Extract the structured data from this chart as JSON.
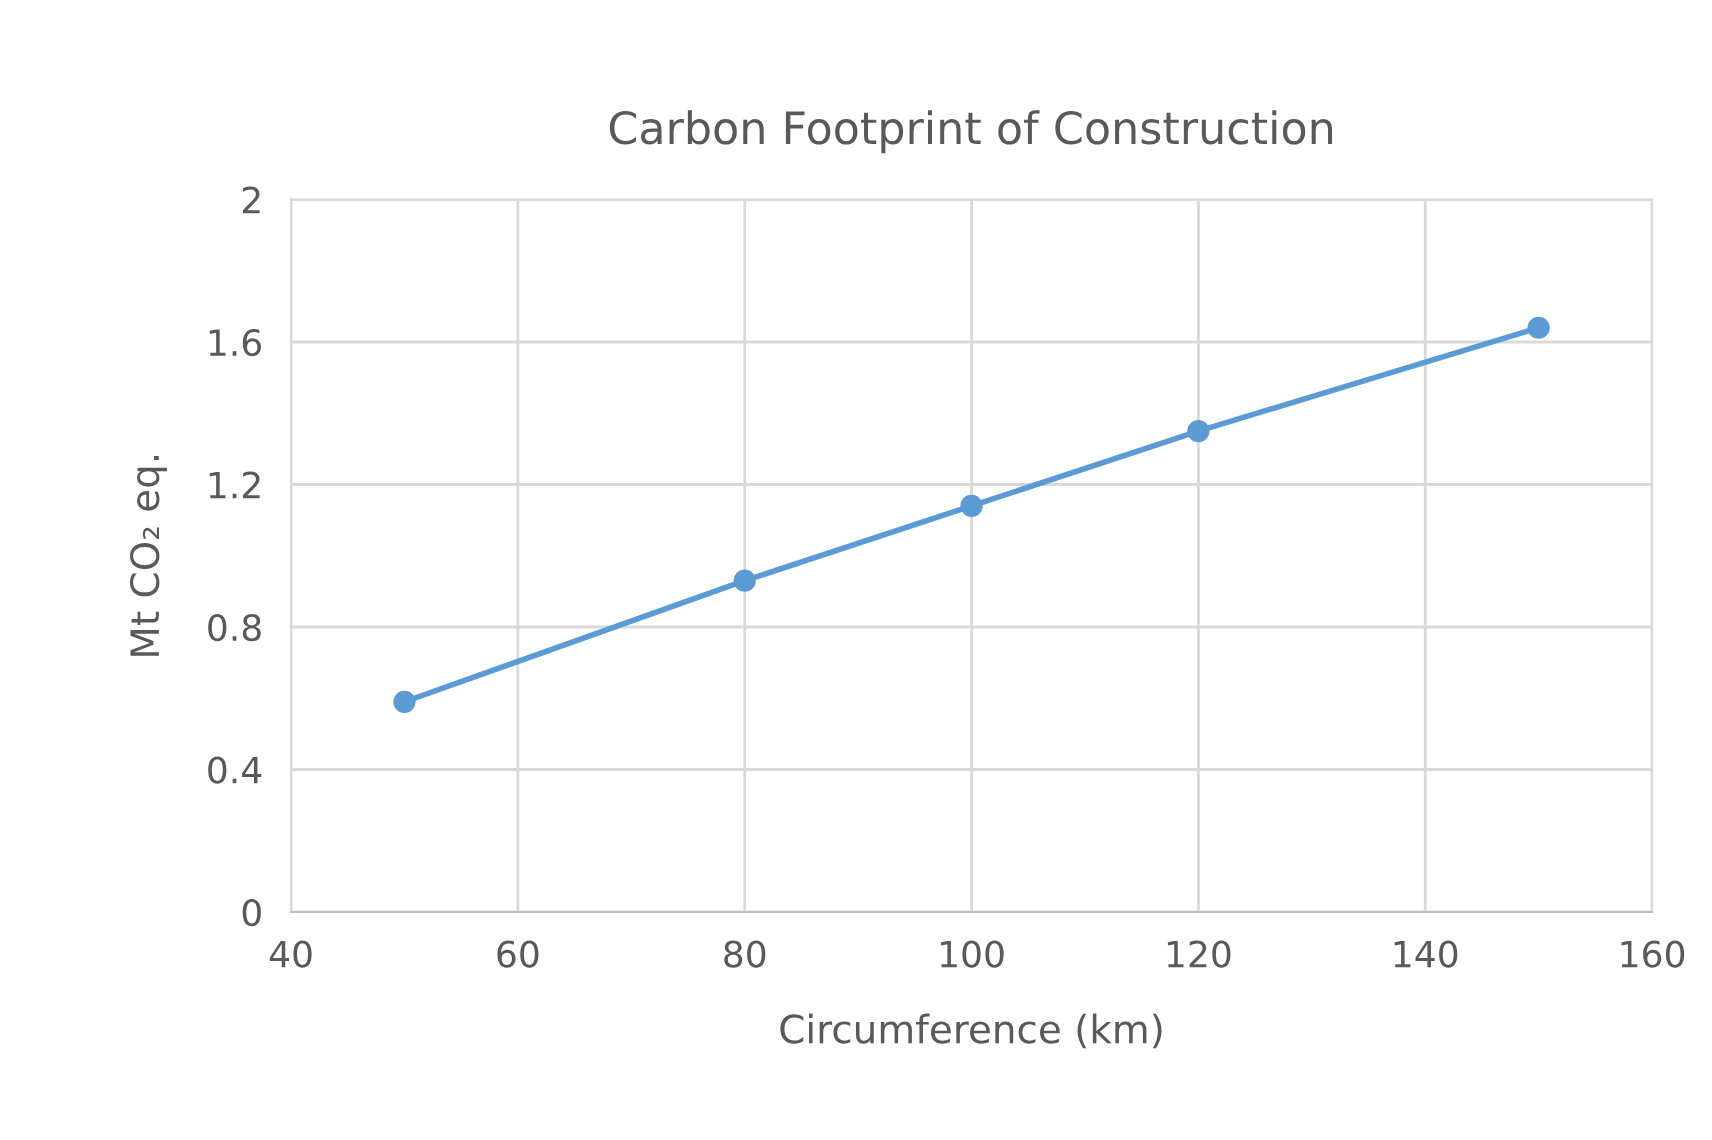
{
  "chart_data": {
    "type": "line",
    "title": "Carbon Footprint of Construction",
    "xlabel": "Circumference (km)",
    "ylabel": "Mt CO₂ eq.",
    "x": [
      50,
      80,
      100,
      120,
      150
    ],
    "series": [
      {
        "color": "#5b9bd5",
        "values": [
          0.59,
          0.93,
          1.14,
          1.35,
          1.64
        ]
      }
    ],
    "xlim": [
      40,
      160
    ],
    "xticks": [
      40,
      60,
      80,
      100,
      120,
      140,
      160
    ],
    "ylim": [
      0,
      2
    ],
    "yticks": [
      0,
      0.4,
      0.8,
      1.2,
      1.6,
      2
    ],
    "grid": true,
    "marker": "circle",
    "line_style": "solid"
  }
}
